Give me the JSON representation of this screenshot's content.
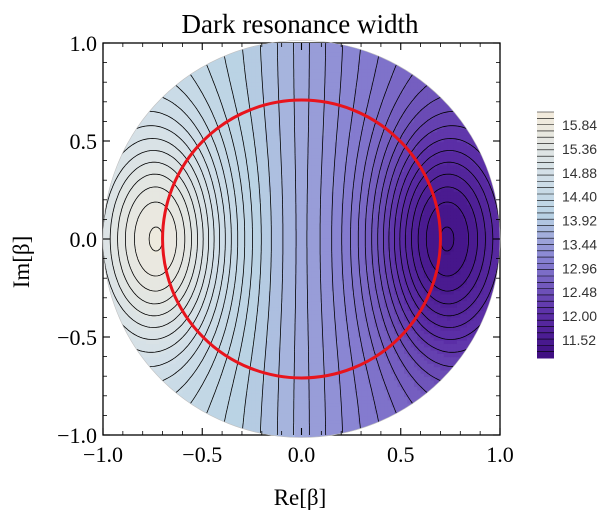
{
  "chart_data": {
    "type": "contour",
    "title": "Dark resonance width",
    "xlabel": "Re[β]",
    "ylabel": "Im[β]",
    "xlim": [
      -1.0,
      1.0
    ],
    "ylim": [
      -1.0,
      1.0
    ],
    "x_ticks": [
      "−1.0",
      "−0.5",
      "0.0",
      "0.5",
      "1.0"
    ],
    "y_ticks": [
      "−1.0",
      "−0.5",
      "0.0",
      "0.5",
      "1.0"
    ],
    "domain": "unit disk |β| ≤ 1",
    "z_range": [
      11.3,
      16.0
    ],
    "maximum": {
      "x": -0.7,
      "y": 0.0,
      "value": 16.0
    },
    "minimum": {
      "x": 0.7,
      "y": 0.0,
      "value": 11.3
    },
    "contour_count": 39,
    "overlay_circle": {
      "color": "#e8141c",
      "radius": 0.7,
      "center": [
        0,
        0
      ]
    },
    "legend": {
      "placement": "right",
      "labels": [
        "15.84",
        "15.36",
        "14.88",
        "14.40",
        "13.92",
        "13.44",
        "12.96",
        "12.48",
        "12.00",
        "11.52"
      ]
    },
    "colors": {
      "high": "#f4ecdc",
      "mid": "#b9d2e4",
      "low": "#3e0d80"
    },
    "grid": false
  }
}
